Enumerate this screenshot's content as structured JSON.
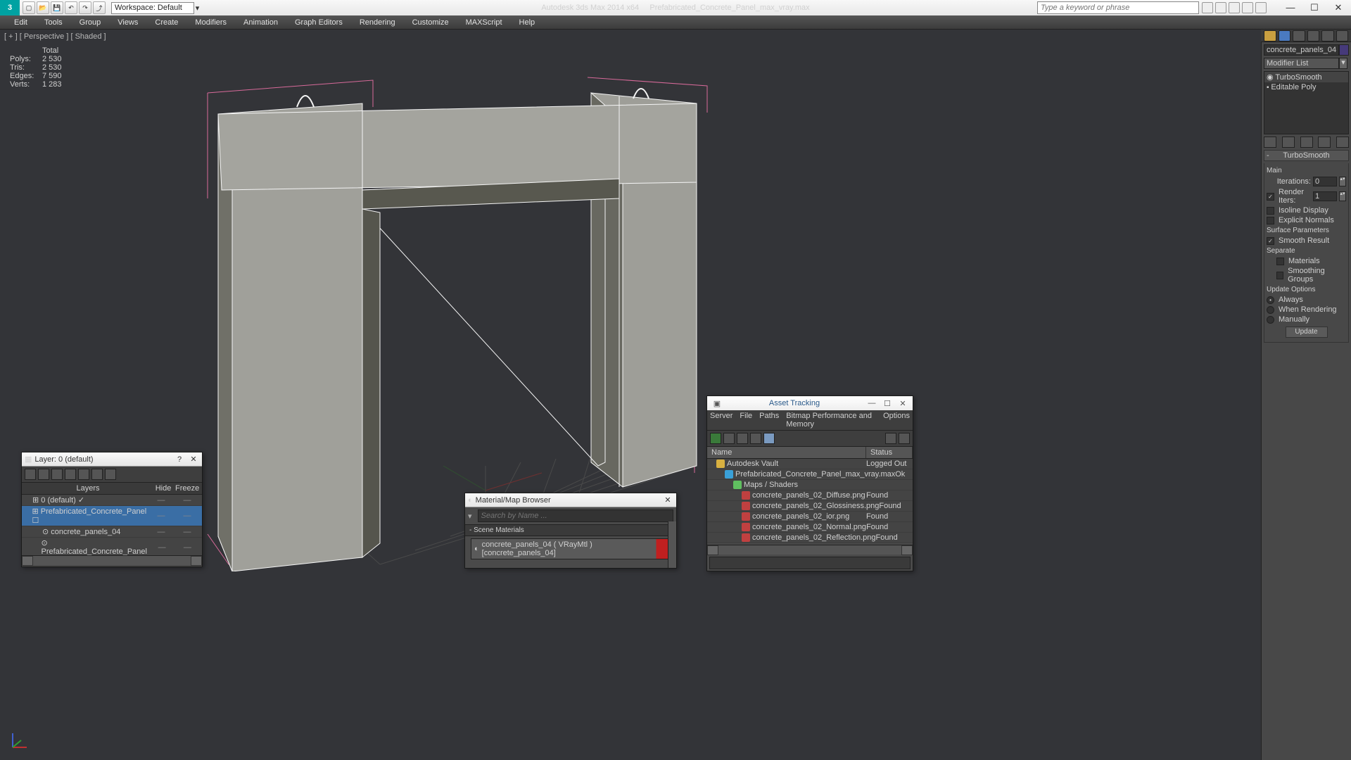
{
  "app": {
    "title_left": "Autodesk 3ds Max  2014 x64",
    "title_right": "Prefabricated_Concrete_Panel_max_vray.max",
    "workspace_label": "Workspace: Default",
    "search_placeholder": "Type a keyword or phrase"
  },
  "menus": [
    "Edit",
    "Tools",
    "Group",
    "Views",
    "Create",
    "Modifiers",
    "Animation",
    "Graph Editors",
    "Rendering",
    "Customize",
    "MAXScript",
    "Help"
  ],
  "viewport": {
    "label": "[ + ] [ Perspective ] [ Shaded ]",
    "stats": {
      "total": "Total",
      "polys_l": "Polys:",
      "polys_v": "2 530",
      "tris_l": "Tris:",
      "tris_v": "2 530",
      "edges_l": "Edges:",
      "edges_v": "7 590",
      "verts_l": "Verts:",
      "verts_v": "1 283"
    },
    "model": {
      "bbox_color": "#d86a9a",
      "edge_color": "#f5f5f5",
      "face_fill": "#9a9a96",
      "face_fill_dark": "#5a5a58",
      "grid_color": "#4a4a4a"
    }
  },
  "command_panel": {
    "object_name": "concrete_panels_04",
    "modifier_list_label": "Modifier List",
    "stack": [
      "TurboSmooth",
      "Editable Poly"
    ],
    "rollup_title": "TurboSmooth",
    "main_label": "Main",
    "iterations_label": "Iterations:",
    "iterations_val": "0",
    "render_iters_label": "Render Iters:",
    "render_iters_val": "1",
    "isoline": "Isoline Display",
    "explicit": "Explicit Normals",
    "surf_params": "Surface Parameters",
    "smooth_result": "Smooth Result",
    "separate": "Separate",
    "materials": "Materials",
    "smoothing_groups": "Smoothing Groups",
    "update_options": "Update Options",
    "always": "Always",
    "when_rendering": "When Rendering",
    "manually": "Manually",
    "update_btn": "Update"
  },
  "layer_win": {
    "title": "Layer: 0 (default)",
    "cols": {
      "layers": "Layers",
      "hide": "Hide",
      "freeze": "Freeze"
    },
    "rows": [
      {
        "indent": 0,
        "name": "0 (default)",
        "sel": false,
        "check": true
      },
      {
        "indent": 0,
        "name": "Prefabricated_Concrete_Panel",
        "sel": true,
        "box": true
      },
      {
        "indent": 1,
        "name": "concrete_panels_04",
        "sel": false
      },
      {
        "indent": 1,
        "name": "Prefabricated_Concrete_Panel",
        "sel": false
      }
    ]
  },
  "mat_win": {
    "title": "Material/Map Browser",
    "search_placeholder": "Search by Name ...",
    "section": "- Scene Materials",
    "item": "concrete_panels_04  ( VRayMtl )  [concrete_panels_04]"
  },
  "asset_win": {
    "title": "Asset Tracking",
    "menus": [
      "Server",
      "File",
      "Paths",
      "Bitmap Performance and Memory",
      "Options"
    ],
    "cols": {
      "name": "Name",
      "status": "Status"
    },
    "rows": [
      {
        "indent": 0,
        "name": "Autodesk Vault",
        "status": "Logged Out",
        "ico": "#d8b040"
      },
      {
        "indent": 1,
        "name": "Prefabricated_Concrete_Panel_max_vray.max",
        "status": "Ok",
        "ico": "#3aa0d8"
      },
      {
        "indent": 2,
        "name": "Maps / Shaders",
        "status": "",
        "ico": "#60c060"
      },
      {
        "indent": 3,
        "name": "concrete_panels_02_Diffuse.png",
        "status": "Found",
        "ico": "#c04040"
      },
      {
        "indent": 3,
        "name": "concrete_panels_02_Glossiness.png",
        "status": "Found",
        "ico": "#c04040"
      },
      {
        "indent": 3,
        "name": "concrete_panels_02_ior.png",
        "status": "Found",
        "ico": "#c04040"
      },
      {
        "indent": 3,
        "name": "concrete_panels_02_Normal.png",
        "status": "Found",
        "ico": "#c04040"
      },
      {
        "indent": 3,
        "name": "concrete_panels_02_Reflection.png",
        "status": "Found",
        "ico": "#c04040"
      }
    ]
  }
}
